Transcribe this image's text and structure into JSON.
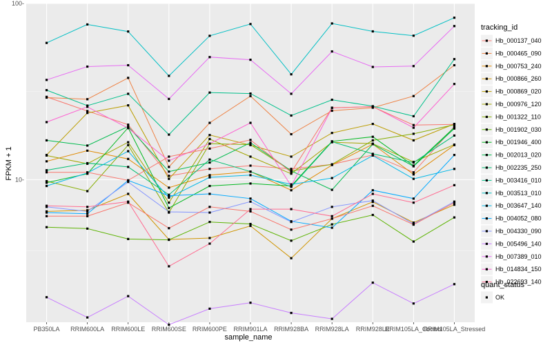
{
  "chart_data": {
    "type": "line",
    "xlabel": "sample_name",
    "ylabel": "FPKM + 1",
    "y_scale": "log10",
    "ylim": [
      1.55,
      100
    ],
    "y_ticks": [
      {
        "value": 10,
        "label": "10-"
      },
      {
        "value": 100,
        "label": "100-"
      }
    ],
    "categories": [
      "PB350LA",
      "RRIM600LA",
      "RRIM600LE",
      "RRIM600SE",
      "RRIM600PE",
      "RRIM901LA",
      "RRIM928BA",
      "RRIM928LA",
      "RRIM928LE",
      "RRIM105LA_Control",
      "RRIM105LA_Stressed"
    ],
    "grid": true,
    "legend_position": "right",
    "legend": {
      "title": "tracking_id"
    },
    "shape_legend": {
      "title": "quant_status",
      "entries": [
        "OK"
      ]
    },
    "series": [
      {
        "name": "Hb_000137_040",
        "color": "#F8766D",
        "values": [
          29.5,
          24.5,
          20.5,
          10.5,
          11.5,
          12.0,
          11.5,
          12.2,
          13.8,
          11.0,
          20.0
        ]
      },
      {
        "name": "Hb_000465_090",
        "color": "#EE8042",
        "values": [
          29.2,
          28.6,
          37.8,
          11.8,
          21.0,
          29.8,
          18.1,
          24.6,
          25.6,
          29.8,
          44.6
        ]
      },
      {
        "name": "Hb_000753_240",
        "color": "#E08A00",
        "values": [
          12.7,
          14.6,
          13.1,
          9.0,
          10.6,
          11.1,
          8.7,
          12.1,
          15.9,
          10.7,
          15.7
        ]
      },
      {
        "name": "Hb_000866_260",
        "color": "#CF9400",
        "values": [
          6.6,
          6.7,
          8.3,
          4.57,
          4.66,
          5.46,
          3.58,
          6.0,
          7.47,
          5.7,
          7.2
        ]
      },
      {
        "name": "Hb_000869_020",
        "color": "#BB9D00",
        "values": [
          13.8,
          23.9,
          26.4,
          10.1,
          17.9,
          15.7,
          13.5,
          18.4,
          20.7,
          16.7,
          20.7
        ]
      },
      {
        "name": "Hb_000976_120",
        "color": "#A3A500",
        "values": [
          13.7,
          12.3,
          16.3,
          7.4,
          17.0,
          13.5,
          10.8,
          16.3,
          16.0,
          12.6,
          15.8
        ]
      },
      {
        "name": "Hb_001322_110",
        "color": "#85AD00",
        "values": [
          9.8,
          8.6,
          15.7,
          6.5,
          16.0,
          15.8,
          11.2,
          12.2,
          16.7,
          18.2,
          20.5
        ]
      },
      {
        "name": "Hb_001902_030",
        "color": "#5BB300",
        "values": [
          5.37,
          5.27,
          4.6,
          4.55,
          5.75,
          5.6,
          4.5,
          5.57,
          6.3,
          4.45,
          6.1
        ]
      },
      {
        "name": "Hb_001946_400",
        "color": "#00B81F",
        "values": [
          9.6,
          10.8,
          19.7,
          6.9,
          9.2,
          9.5,
          9.2,
          16.5,
          17.5,
          12.0,
          19.8
        ]
      },
      {
        "name": "Hb_002013_020",
        "color": "#00BB4E",
        "values": [
          16.7,
          15.6,
          20.0,
          11.1,
          12.5,
          16.2,
          11.2,
          8.75,
          15.9,
          11.9,
          19.5
        ]
      },
      {
        "name": "Hb_002235_250",
        "color": "#00BE70",
        "values": [
          11.3,
          12.4,
          11.8,
          8.2,
          13.0,
          11.1,
          9.1,
          16.4,
          14.0,
          12.5,
          17.8
        ]
      },
      {
        "name": "Hb_003416_010",
        "color": "#00C08B",
        "values": [
          32.2,
          26.3,
          30.7,
          18.0,
          31.2,
          30.8,
          23.1,
          28.4,
          26.1,
          22.9,
          48.3
        ]
      },
      {
        "name": "Hb_003513_010",
        "color": "#00BFC4",
        "values": [
          59.7,
          76.0,
          69.3,
          38.8,
          65.5,
          76.4,
          39.6,
          77.0,
          69.4,
          65.6,
          83.0
        ]
      },
      {
        "name": "Hb_003647_140",
        "color": "#00B8E7",
        "values": [
          9.2,
          10.9,
          14.5,
          7.9,
          10.3,
          10.6,
          9.4,
          10.2,
          13.7,
          10.1,
          11.5
        ]
      },
      {
        "name": "Hb_004052_080",
        "color": "#00A9FF",
        "values": [
          6.5,
          6.4,
          9.9,
          8.1,
          8.3,
          7.8,
          5.8,
          5.33,
          8.7,
          7.8,
          13.8
        ]
      },
      {
        "name": "Hb_004330_090",
        "color": "#8494FF",
        "values": [
          7.0,
          6.6,
          9.7,
          6.56,
          6.5,
          7.5,
          5.75,
          7.0,
          7.6,
          5.6,
          7.5
        ]
      },
      {
        "name": "Hb_005496_140",
        "color": "#C77CFF",
        "values": [
          2.15,
          1.65,
          2.18,
          1.5,
          1.85,
          2.0,
          1.75,
          1.62,
          2.6,
          1.98,
          2.55
        ]
      },
      {
        "name": "Hb_007389_010",
        "color": "#E76BF3",
        "values": [
          36.8,
          43.8,
          44.6,
          28.7,
          49.6,
          47.9,
          30.7,
          53.4,
          43.6,
          44.1,
          74.4
        ]
      },
      {
        "name": "Hb_014834_150",
        "color": "#FD61D1",
        "values": [
          21.2,
          25.9,
          19.6,
          12.8,
          16.0,
          21.0,
          9.2,
          25.5,
          26.0,
          19.7,
          34.9
        ]
      },
      {
        "name": "Hb_022693_140",
        "color": "#FF6C91",
        "values": [
          7.1,
          7.0,
          7.5,
          3.22,
          4.33,
          6.8,
          6.8,
          6.2,
          8.3,
          7.4,
          9.3
        ]
      },
      {
        "name": "",
        "color": "#F8766D",
        "values": [
          11.0,
          11.0,
          9.9,
          13.5,
          15.0,
          16.8,
          11.0,
          25.6,
          25.9,
          20.4,
          20.6
        ]
      },
      {
        "name": "",
        "color": "#F8766D",
        "values": [
          6.2,
          6.2,
          7.4,
          5.3,
          7.0,
          6.6,
          5.2,
          6.0,
          7.1,
          5.55,
          7.4
        ]
      }
    ]
  }
}
